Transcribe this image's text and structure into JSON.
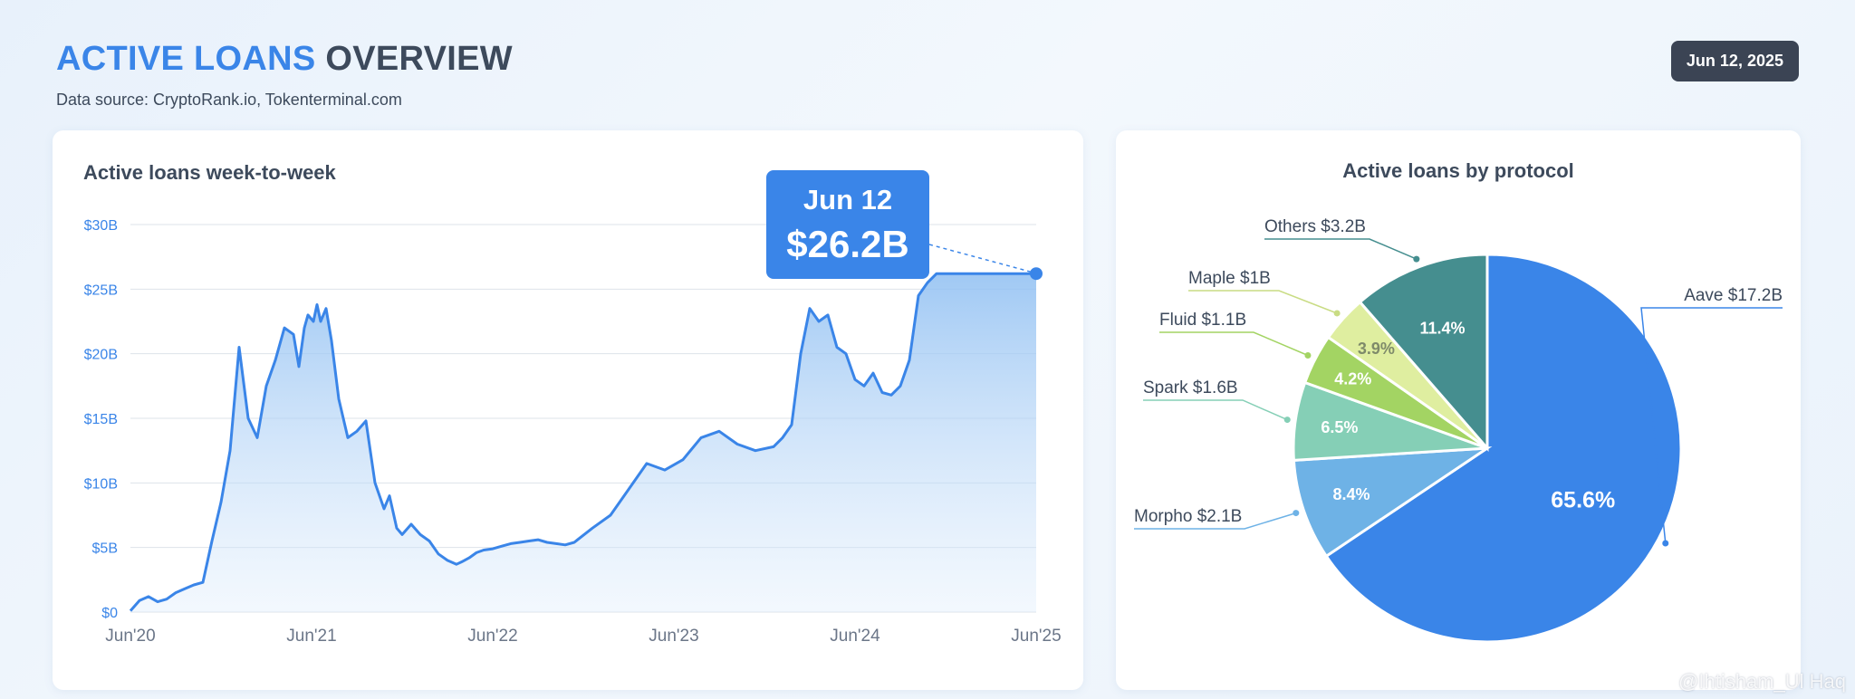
{
  "header": {
    "title_accent": "ACTIVE LOANS",
    "title_rest": "OVERVIEW",
    "subtitle": "Data source: CryptoRank.io, Tokenterminal.com",
    "date": "Jun 12, 2025"
  },
  "watermark": "@Ihtisham_Ul Haq",
  "chart_data": [
    {
      "type": "area",
      "title": "Active loans week-to-week",
      "xlabel": "",
      "ylabel": "",
      "x_ticks": [
        "Jun'20",
        "Jun'21",
        "Jun'22",
        "Jun'23",
        "Jun'24",
        "Jun'25"
      ],
      "y_ticks": [
        "$0",
        "$5B",
        "$10B",
        "$15B",
        "$20B",
        "$25B",
        "$30B"
      ],
      "ylim": [
        0,
        30
      ],
      "grid": true,
      "color": "#3a85e8",
      "series": [
        {
          "x": [
            2020.45,
            2020.5,
            2020.55,
            2020.6,
            2020.65,
            2020.7,
            2020.75,
            2020.8,
            2020.85,
            2020.9,
            2020.95,
            2021.0,
            2021.05,
            2021.1,
            2021.15,
            2021.2,
            2021.25,
            2021.3,
            2021.35,
            2021.38,
            2021.41,
            2021.43,
            2021.46,
            2021.48,
            2021.5,
            2021.53,
            2021.56,
            2021.6,
            2021.65,
            2021.7,
            2021.75,
            2021.8,
            2021.85,
            2021.88,
            2021.92,
            2021.95,
            2022.0,
            2022.05,
            2022.1,
            2022.15,
            2022.2,
            2022.25,
            2022.28,
            2022.32,
            2022.36,
            2022.4,
            2022.45,
            2022.5,
            2022.55,
            2022.6,
            2022.65,
            2022.7,
            2022.75,
            2022.8,
            2022.85,
            2022.9,
            2023.0,
            2023.1,
            2023.2,
            2023.3,
            2023.4,
            2023.5,
            2023.6,
            2023.7,
            2023.8,
            2023.9,
            2024.0,
            2024.05,
            2024.1,
            2024.15,
            2024.2,
            2024.25,
            2024.3,
            2024.35,
            2024.4,
            2024.45,
            2024.5,
            2024.55,
            2024.6,
            2024.65,
            2024.7,
            2024.75,
            2024.8,
            2024.85,
            2024.9,
            2024.95,
            2025.0,
            2025.05,
            2025.1,
            2025.15,
            2025.2,
            2025.25,
            2025.3,
            2025.35,
            2025.4,
            2025.45
          ],
          "values": [
            0.1,
            0.9,
            1.2,
            0.8,
            1.0,
            1.5,
            1.8,
            2.1,
            2.3,
            5.5,
            8.5,
            12.5,
            20.5,
            15.0,
            13.5,
            17.5,
            19.5,
            22.0,
            21.5,
            19.0,
            22.0,
            23.0,
            22.5,
            23.8,
            22.5,
            23.5,
            21.0,
            16.5,
            13.5,
            14.0,
            14.8,
            10.0,
            8.0,
            9.0,
            6.5,
            6.0,
            6.8,
            6.0,
            5.5,
            4.5,
            4.0,
            3.7,
            3.9,
            4.2,
            4.6,
            4.8,
            4.9,
            5.1,
            5.3,
            5.4,
            5.5,
            5.6,
            5.4,
            5.3,
            5.2,
            5.4,
            6.5,
            7.5,
            9.5,
            11.5,
            11.0,
            11.8,
            13.5,
            14.0,
            13.0,
            12.5,
            12.8,
            13.5,
            14.5,
            20.0,
            23.5,
            22.5,
            23.0,
            20.5,
            20.0,
            18.0,
            17.5,
            18.5,
            17.0,
            16.8,
            17.5,
            19.5,
            24.5,
            25.5,
            26.2,
            26.2,
            26.2,
            26.2,
            26.2,
            26.2,
            26.2,
            26.2,
            26.2,
            26.2,
            26.2,
            26.2
          ]
        }
      ],
      "callout": {
        "date": "Jun 12",
        "value": "$26.2B"
      }
    },
    {
      "type": "pie",
      "title": "Active loans by protocol",
      "slices": [
        {
          "name": "Aave",
          "label": "Aave $17.2B",
          "value": 65.6,
          "pct_label": "65.6%",
          "color": "#3a85e8",
          "text_color": "#ffffff"
        },
        {
          "name": "Morpho",
          "label": "Morpho $2.1B",
          "value": 8.4,
          "pct_label": "8.4%",
          "color": "#6eb2e6",
          "text_color": "#ffffff"
        },
        {
          "name": "Spark",
          "label": "Spark $1.6B",
          "value": 6.5,
          "pct_label": "6.5%",
          "color": "#85cfb6",
          "text_color": "#ffffff"
        },
        {
          "name": "Fluid",
          "label": "Fluid $1.1B",
          "value": 4.2,
          "pct_label": "4.2%",
          "color": "#a3d463",
          "text_color": "#ffffff"
        },
        {
          "name": "Maple",
          "label": "Maple $1B",
          "value": 3.9,
          "pct_label": "3.9%",
          "color": "#dfeea0",
          "text_color": "#7e8a6a"
        },
        {
          "name": "Others",
          "label": "Others $3.2B",
          "value": 11.4,
          "pct_label": "11.4%",
          "color": "#458e8f",
          "text_color": "#ffffff"
        }
      ]
    }
  ]
}
